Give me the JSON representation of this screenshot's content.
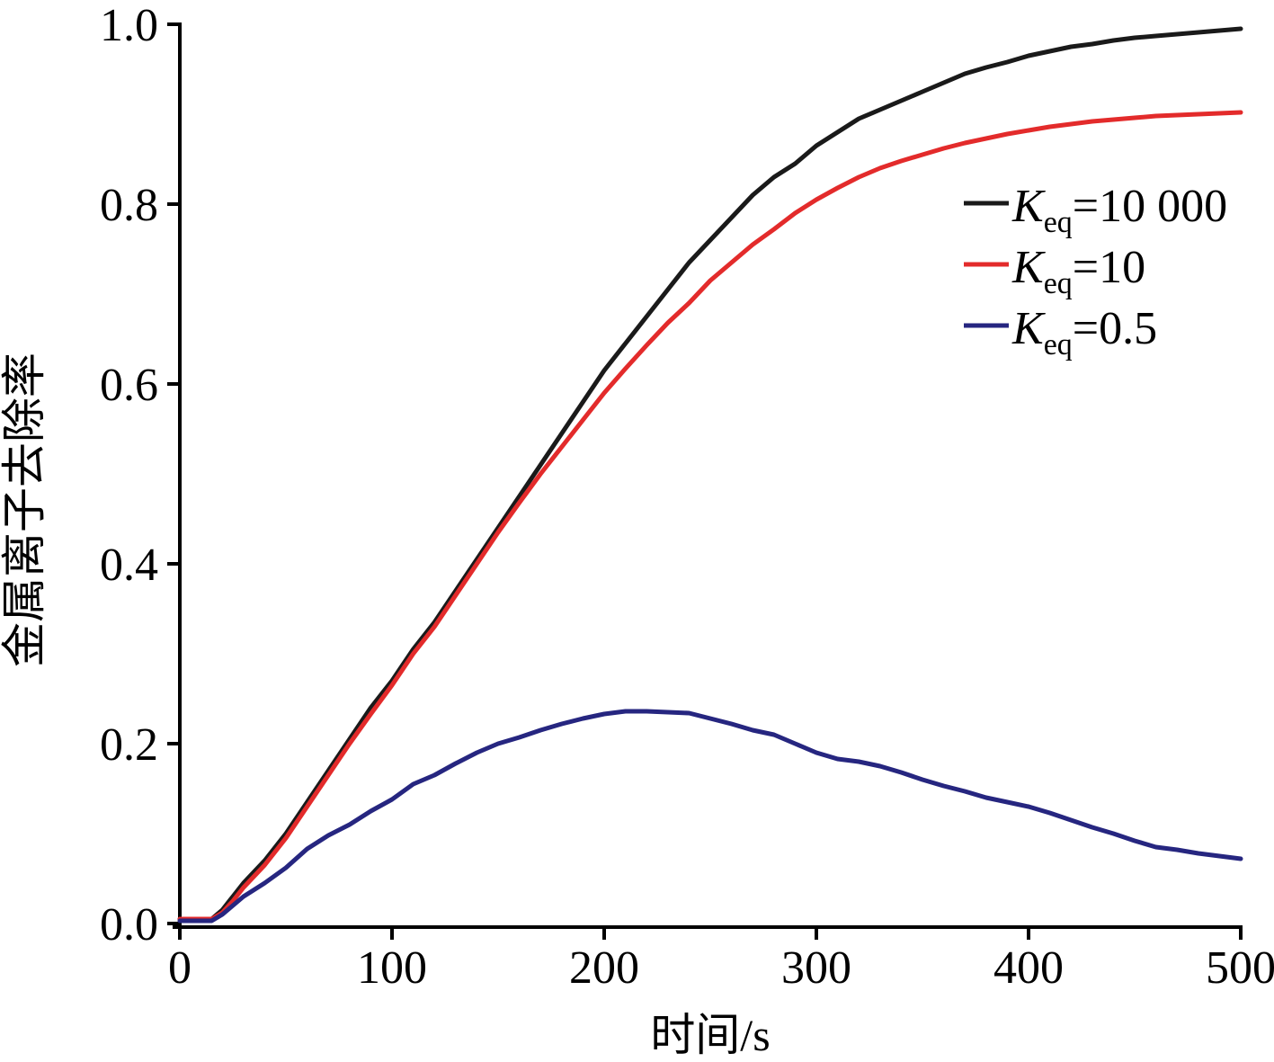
{
  "chart_data": {
    "type": "line",
    "title": "",
    "xlabel": "时间/s",
    "ylabel": "金属离子去除率",
    "xlim": [
      0,
      500
    ],
    "ylim": [
      0,
      1.0
    ],
    "xticks": [
      0,
      100,
      200,
      300,
      400,
      500
    ],
    "yticks": [
      0.0,
      0.2,
      0.4,
      0.6,
      0.8,
      1.0
    ],
    "xtick_labels": [
      "0",
      "100",
      "200",
      "300",
      "400",
      "500"
    ],
    "ytick_labels": [
      "0.0",
      "0.2",
      "0.4",
      "0.6",
      "0.8",
      "1.0"
    ],
    "grid": false,
    "legend_position": "top-right",
    "legend_symbol": "K",
    "legend_subscript": "eq",
    "series": [
      {
        "name": "K_eq=10 000",
        "legend_value": "=10 000",
        "color": "#1a1a1a",
        "x": [
          0,
          15,
          20,
          25,
          30,
          40,
          50,
          60,
          70,
          80,
          90,
          100,
          110,
          120,
          130,
          140,
          150,
          160,
          170,
          180,
          190,
          200,
          210,
          220,
          230,
          240,
          250,
          260,
          270,
          280,
          290,
          300,
          310,
          320,
          330,
          340,
          350,
          360,
          370,
          380,
          390,
          400,
          410,
          420,
          430,
          440,
          450,
          460,
          470,
          480,
          490,
          500
        ],
        "y": [
          0.005,
          0.005,
          0.015,
          0.03,
          0.045,
          0.07,
          0.1,
          0.135,
          0.17,
          0.205,
          0.24,
          0.27,
          0.305,
          0.335,
          0.37,
          0.405,
          0.44,
          0.475,
          0.51,
          0.545,
          0.58,
          0.615,
          0.645,
          0.675,
          0.705,
          0.735,
          0.76,
          0.785,
          0.81,
          0.83,
          0.845,
          0.865,
          0.88,
          0.895,
          0.905,
          0.915,
          0.925,
          0.935,
          0.945,
          0.952,
          0.958,
          0.965,
          0.97,
          0.975,
          0.978,
          0.982,
          0.985,
          0.987,
          0.989,
          0.991,
          0.993,
          0.995
        ]
      },
      {
        "name": "K_eq=10",
        "legend_value": "=10",
        "color": "#e32b2b",
        "x": [
          0,
          15,
          20,
          25,
          30,
          40,
          50,
          60,
          70,
          80,
          90,
          100,
          110,
          120,
          130,
          140,
          150,
          160,
          170,
          180,
          190,
          200,
          210,
          220,
          230,
          240,
          250,
          260,
          270,
          280,
          290,
          300,
          310,
          320,
          330,
          340,
          350,
          360,
          370,
          380,
          390,
          400,
          410,
          420,
          430,
          440,
          450,
          460,
          470,
          480,
          490,
          500
        ],
        "y": [
          0.005,
          0.005,
          0.012,
          0.025,
          0.04,
          0.065,
          0.095,
          0.13,
          0.165,
          0.2,
          0.233,
          0.265,
          0.3,
          0.33,
          0.365,
          0.4,
          0.435,
          0.468,
          0.5,
          0.53,
          0.56,
          0.59,
          0.617,
          0.643,
          0.668,
          0.69,
          0.715,
          0.735,
          0.755,
          0.772,
          0.79,
          0.805,
          0.818,
          0.83,
          0.84,
          0.848,
          0.855,
          0.862,
          0.868,
          0.873,
          0.878,
          0.882,
          0.886,
          0.889,
          0.892,
          0.894,
          0.896,
          0.898,
          0.899,
          0.9,
          0.901,
          0.902
        ]
      },
      {
        "name": "K_eq=0.5",
        "legend_value": "=0.5",
        "color": "#262680",
        "x": [
          0,
          15,
          20,
          25,
          30,
          40,
          50,
          60,
          70,
          80,
          90,
          100,
          110,
          120,
          130,
          140,
          150,
          160,
          170,
          180,
          190,
          200,
          210,
          220,
          230,
          240,
          250,
          260,
          270,
          280,
          290,
          300,
          310,
          320,
          330,
          340,
          350,
          360,
          370,
          380,
          390,
          400,
          410,
          420,
          430,
          440,
          450,
          460,
          470,
          480,
          490,
          500
        ],
        "y": [
          0.003,
          0.003,
          0.01,
          0.02,
          0.03,
          0.045,
          0.062,
          0.083,
          0.098,
          0.11,
          0.125,
          0.138,
          0.155,
          0.165,
          0.178,
          0.19,
          0.2,
          0.207,
          0.215,
          0.222,
          0.228,
          0.233,
          0.236,
          0.236,
          0.235,
          0.234,
          0.228,
          0.222,
          0.215,
          0.21,
          0.2,
          0.19,
          0.183,
          0.18,
          0.175,
          0.168,
          0.16,
          0.153,
          0.147,
          0.14,
          0.135,
          0.13,
          0.123,
          0.115,
          0.107,
          0.1,
          0.092,
          0.085,
          0.082,
          0.078,
          0.075,
          0.072
        ]
      }
    ]
  }
}
